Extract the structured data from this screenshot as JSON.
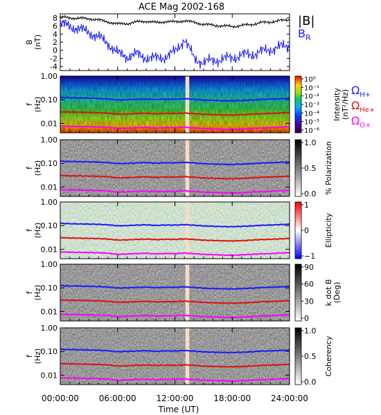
{
  "title": "ACE Mag 2002-168",
  "time_axis": {
    "label": "Time (UT)",
    "ticks": [
      "00:00:00",
      "06:00:00",
      "12:00:00",
      "18:00:00",
      "24:00:00"
    ],
    "range_hours": [
      0,
      24
    ],
    "data_gap_hours": [
      13.1,
      13.5
    ]
  },
  "colors": {
    "h_plus": "#1a1aff",
    "he_plus": "#e01010",
    "o_plus": "#ff00ff",
    "b_total": "#000000",
    "b_r": "#1a1aff",
    "gap": "#f5dcc8"
  },
  "chart_data": [
    {
      "type": "line",
      "panel": "field",
      "ylabel": "B (nT)",
      "ylim": [
        -5,
        9
      ],
      "yticks": [
        "-4",
        "-2",
        "0",
        "2",
        "4",
        "6",
        "8"
      ],
      "series": [
        {
          "name": "|B|",
          "x": [
            0,
            1,
            2,
            3,
            4,
            5,
            6,
            7,
            8,
            9,
            10,
            11,
            12,
            13,
            14,
            15,
            16,
            17,
            18,
            19,
            20,
            21,
            22,
            23,
            24
          ],
          "values": [
            8.2,
            8.0,
            7.9,
            7.8,
            7.5,
            7.0,
            6.5,
            6.6,
            7.0,
            7.2,
            6.8,
            7.1,
            7.0,
            7.3,
            6.9,
            6.4,
            6.2,
            6.0,
            5.9,
            6.1,
            6.4,
            6.8,
            7.0,
            7.3,
            7.6
          ]
        },
        {
          "name": "B",
          "label_sub": "R",
          "x": [
            0,
            1,
            2,
            3,
            4,
            5,
            6,
            7,
            8,
            9,
            10,
            11,
            12,
            13,
            14,
            15,
            16,
            17,
            18,
            19,
            20,
            21,
            22,
            23,
            24
          ],
          "values": [
            6.5,
            6.0,
            5.2,
            4.5,
            3.2,
            1.8,
            -0.8,
            -1.5,
            -1.0,
            -1.8,
            -2.0,
            -1.6,
            -0.4,
            2.8,
            -2.0,
            -3.0,
            -2.5,
            -2.2,
            -1.8,
            -1.2,
            -1.0,
            -0.4,
            0.2,
            0.8,
            1.2
          ]
        }
      ]
    },
    {
      "type": "heatmap",
      "panel": "intensity",
      "ylabel": "f (Hz)",
      "ylim": [
        0.004,
        1.0
      ],
      "yscale": "log",
      "yticks": [
        "1.00",
        "0.10",
        "0.01"
      ],
      "colorbar": {
        "label": "Intensity (nT²/Hz)",
        "ticks": [
          "10⁰",
          "10⁻¹",
          "10⁻²",
          "10⁻³",
          "10⁻⁴",
          "10⁻⁵",
          "10⁻⁶"
        ],
        "scale": "rainbow"
      }
    },
    {
      "type": "heatmap",
      "panel": "polarization",
      "ylabel": "f (Hz)",
      "ylim": [
        0.004,
        1.0
      ],
      "yscale": "log",
      "yticks": [
        "1.00",
        "0.10",
        "0.01"
      ],
      "colorbar": {
        "label": "% Polarization",
        "ticks": [
          "1.0",
          "0.5",
          "0.0"
        ],
        "scale": "gray"
      }
    },
    {
      "type": "heatmap",
      "panel": "ellipticity",
      "ylabel": "f (Hz)",
      "ylim": [
        0.004,
        1.0
      ],
      "yscale": "log",
      "yticks": [
        "1.00",
        "0.10",
        "0.01"
      ],
      "colorbar": {
        "label": "Ellipticity",
        "ticks": [
          "1",
          "0",
          "−1"
        ],
        "scale": "bwr"
      }
    },
    {
      "type": "heatmap",
      "panel": "kdotb",
      "ylabel": "f (Hz)",
      "ylim": [
        0.004,
        1.0
      ],
      "yscale": "log",
      "yticks": [
        "1.00",
        "0.10",
        "0.01"
      ],
      "colorbar": {
        "label": "k dot B (Deg)",
        "ticks": [
          "90",
          "60",
          "30",
          "0"
        ],
        "scale": "gray"
      }
    },
    {
      "type": "heatmap",
      "panel": "coherency",
      "ylabel": "f (Hz)",
      "ylim": [
        0.004,
        1.0
      ],
      "yscale": "log",
      "yticks": [
        "1.00",
        "0.10",
        "0.01"
      ],
      "colorbar": {
        "label": "Coherency",
        "ticks": [
          "1.0",
          "0.5",
          "0.0"
        ],
        "scale": "gray"
      }
    }
  ],
  "gyro_lines": {
    "legend": [
      {
        "symbol": "Ω",
        "sub": "H+",
        "key": "h_plus"
      },
      {
        "symbol": "Ω",
        "sub": "He+",
        "key": "he_plus"
      },
      {
        "symbol": "Ω",
        "sub": "O+",
        "key": "o_plus"
      }
    ],
    "hplus_hz": [
      0.125,
      0.12,
      0.118,
      0.116,
      0.113,
      0.108,
      0.098,
      0.1,
      0.105,
      0.108,
      0.102,
      0.106,
      0.105,
      0.11,
      0.104,
      0.097,
      0.094,
      0.091,
      0.09,
      0.093,
      0.097,
      0.103,
      0.106,
      0.11,
      0.115
    ],
    "heplus_hz": [
      0.031,
      0.03,
      0.0295,
      0.029,
      0.0283,
      0.027,
      0.0245,
      0.025,
      0.0262,
      0.027,
      0.0255,
      0.0265,
      0.0262,
      0.0275,
      0.026,
      0.0242,
      0.0235,
      0.0228,
      0.0225,
      0.0232,
      0.0243,
      0.0258,
      0.0265,
      0.0275,
      0.0288
    ],
    "oplus_hz": [
      0.0078,
      0.0075,
      0.0074,
      0.0073,
      0.0071,
      0.0068,
      0.0061,
      0.0063,
      0.0066,
      0.0068,
      0.0064,
      0.0066,
      0.0066,
      0.0069,
      0.0065,
      0.0061,
      0.0059,
      0.0057,
      0.0056,
      0.0058,
      0.0061,
      0.0064,
      0.0066,
      0.0069,
      0.0072
    ]
  }
}
